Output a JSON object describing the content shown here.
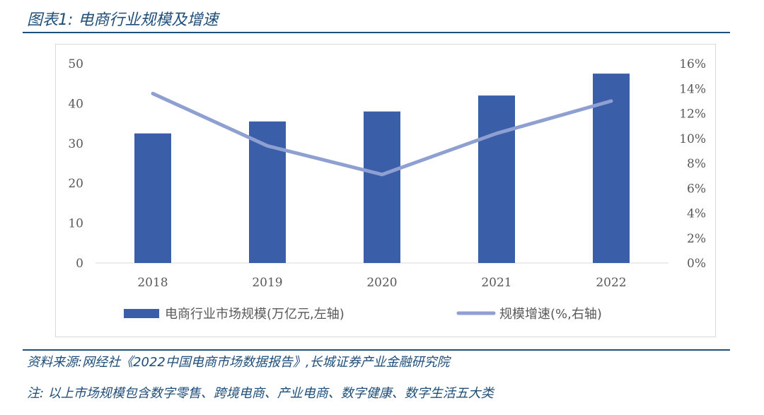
{
  "figure_title": "图表1:  电商行业规模及增速",
  "source": "资料来源:网经社《2022中国电商市场数据报告》,长城证券产业金融研究院",
  "note": "注:  以上市场规模包含数字零售、跨境电商、产业电商、数字健康、数字生活五大类",
  "colors": {
    "bar": "#3a5fa8",
    "line": "#8e9fd1",
    "rule": "#1f4e79"
  },
  "chart_data": {
    "type": "bar",
    "categories": [
      "2018",
      "2019",
      "2020",
      "2021",
      "2022"
    ],
    "series": [
      {
        "name": "电商行业市场规模(万亿元,左轴)",
        "type": "bar",
        "axis": "left",
        "values": [
          32.5,
          35.5,
          38,
          42,
          47.5
        ]
      },
      {
        "name": "规模增速(%,右轴)",
        "type": "line",
        "axis": "right",
        "values": [
          13.6,
          9.4,
          7.1,
          10.4,
          13.0
        ]
      }
    ],
    "left_axis": {
      "ylim": [
        0,
        50
      ],
      "ticks": [
        "0",
        "10",
        "20",
        "30",
        "40",
        "50"
      ]
    },
    "right_axis": {
      "ylim": [
        0,
        16
      ],
      "ticks": [
        "0%",
        "2%",
        "4%",
        "6%",
        "8%",
        "10%",
        "12%",
        "14%",
        "16%"
      ]
    },
    "grid": false,
    "legend": "bottom"
  }
}
